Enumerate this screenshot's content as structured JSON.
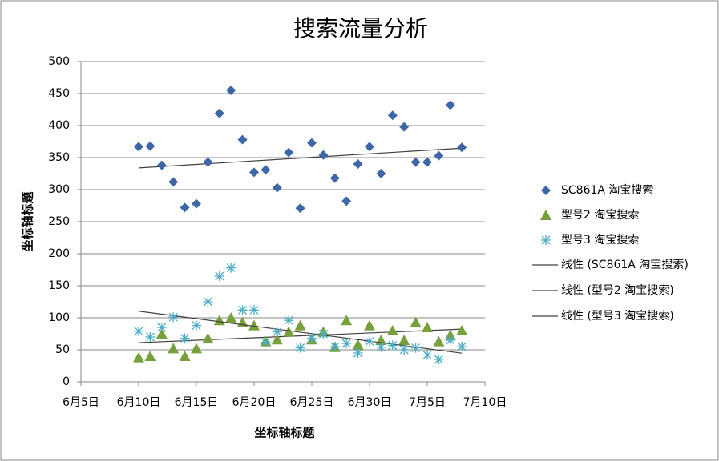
{
  "chart_data": {
    "type": "scatter",
    "title": "搜索流量分析",
    "x_label": "坐标轴标题",
    "y_label": "坐标轴标题",
    "xlim": [
      5,
      40
    ],
    "xticks": [
      {
        "value": 5,
        "label": "6月5日"
      },
      {
        "value": 10,
        "label": "6月10日"
      },
      {
        "value": 15,
        "label": "6月15日"
      },
      {
        "value": 20,
        "label": "6月20日"
      },
      {
        "value": 25,
        "label": "6月25日"
      },
      {
        "value": 30,
        "label": "6月30日"
      },
      {
        "value": 35,
        "label": "7月5日"
      },
      {
        "value": 40,
        "label": "7月10日"
      }
    ],
    "ylim": [
      0,
      500
    ],
    "yticks": [
      0,
      50,
      100,
      150,
      200,
      250,
      300,
      350,
      400,
      450,
      500
    ],
    "grid": true,
    "legend": "right",
    "x": [
      10,
      11,
      12,
      13,
      14,
      15,
      16,
      17,
      18,
      19,
      20,
      21,
      22,
      23,
      24,
      25,
      26,
      27,
      28,
      29,
      30,
      31,
      32,
      33,
      34,
      35,
      36,
      37,
      38
    ],
    "series": [
      {
        "name": "SC861A 淘宝搜索",
        "color": "#3d67a6",
        "marker": "diamond",
        "trendline": "线性 (SC861A 淘宝搜索)",
        "values": [
          367,
          368,
          338,
          312,
          272,
          278,
          343,
          419,
          455,
          378,
          327,
          331,
          303,
          358,
          271,
          373,
          354,
          318,
          282,
          340,
          367,
          325,
          416,
          398,
          343,
          343,
          353,
          432,
          366
        ]
      },
      {
        "name": "型号2 淘宝搜索",
        "color": "#77a03a",
        "marker": "triangle",
        "trendline": "线性 (型号2 淘宝搜索)",
        "values": [
          38,
          40,
          75,
          52,
          40,
          52,
          68,
          96,
          100,
          93,
          88,
          63,
          66,
          78,
          88,
          66,
          78,
          54,
          96,
          58,
          88,
          65,
          80,
          65,
          93,
          85,
          63,
          73,
          80
        ]
      },
      {
        "name": "型号3 淘宝搜索",
        "color": "#4bacc6",
        "marker": "asterisk",
        "trendline": "线性 (型号3 淘宝搜索)",
        "values": [
          79,
          70,
          85,
          101,
          68,
          88,
          125,
          165,
          178,
          112,
          112,
          62,
          78,
          96,
          53,
          68,
          75,
          55,
          60,
          45,
          63,
          54,
          57,
          50,
          53,
          42,
          35,
          65,
          55
        ]
      }
    ],
    "trendline_color": "#404040"
  }
}
